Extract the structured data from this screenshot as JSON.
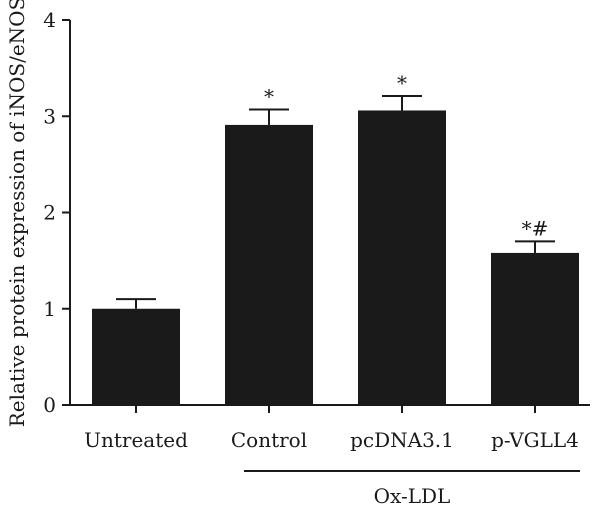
{
  "chart_data": {
    "type": "bar",
    "title": "",
    "xlabel": "",
    "ylabel": "Relative protein expression of iNOS/eNOS",
    "ylim": [
      0,
      4
    ],
    "yticks": [
      0,
      1,
      2,
      3,
      4
    ],
    "grid": false,
    "categories": [
      "Untreated",
      "Control",
      "pcDNA3.1",
      "p-VGLL4"
    ],
    "values": [
      1.0,
      2.91,
      3.06,
      1.58
    ],
    "errors": [
      0.1,
      0.16,
      0.15,
      0.12
    ],
    "significance": [
      "",
      "*",
      "*",
      "*#"
    ],
    "bar_color": "#1a1a1a",
    "group_bracket": {
      "label": "Ox-LDL",
      "categories": [
        "Control",
        "pcDNA3.1",
        "p-VGLL4"
      ]
    }
  }
}
